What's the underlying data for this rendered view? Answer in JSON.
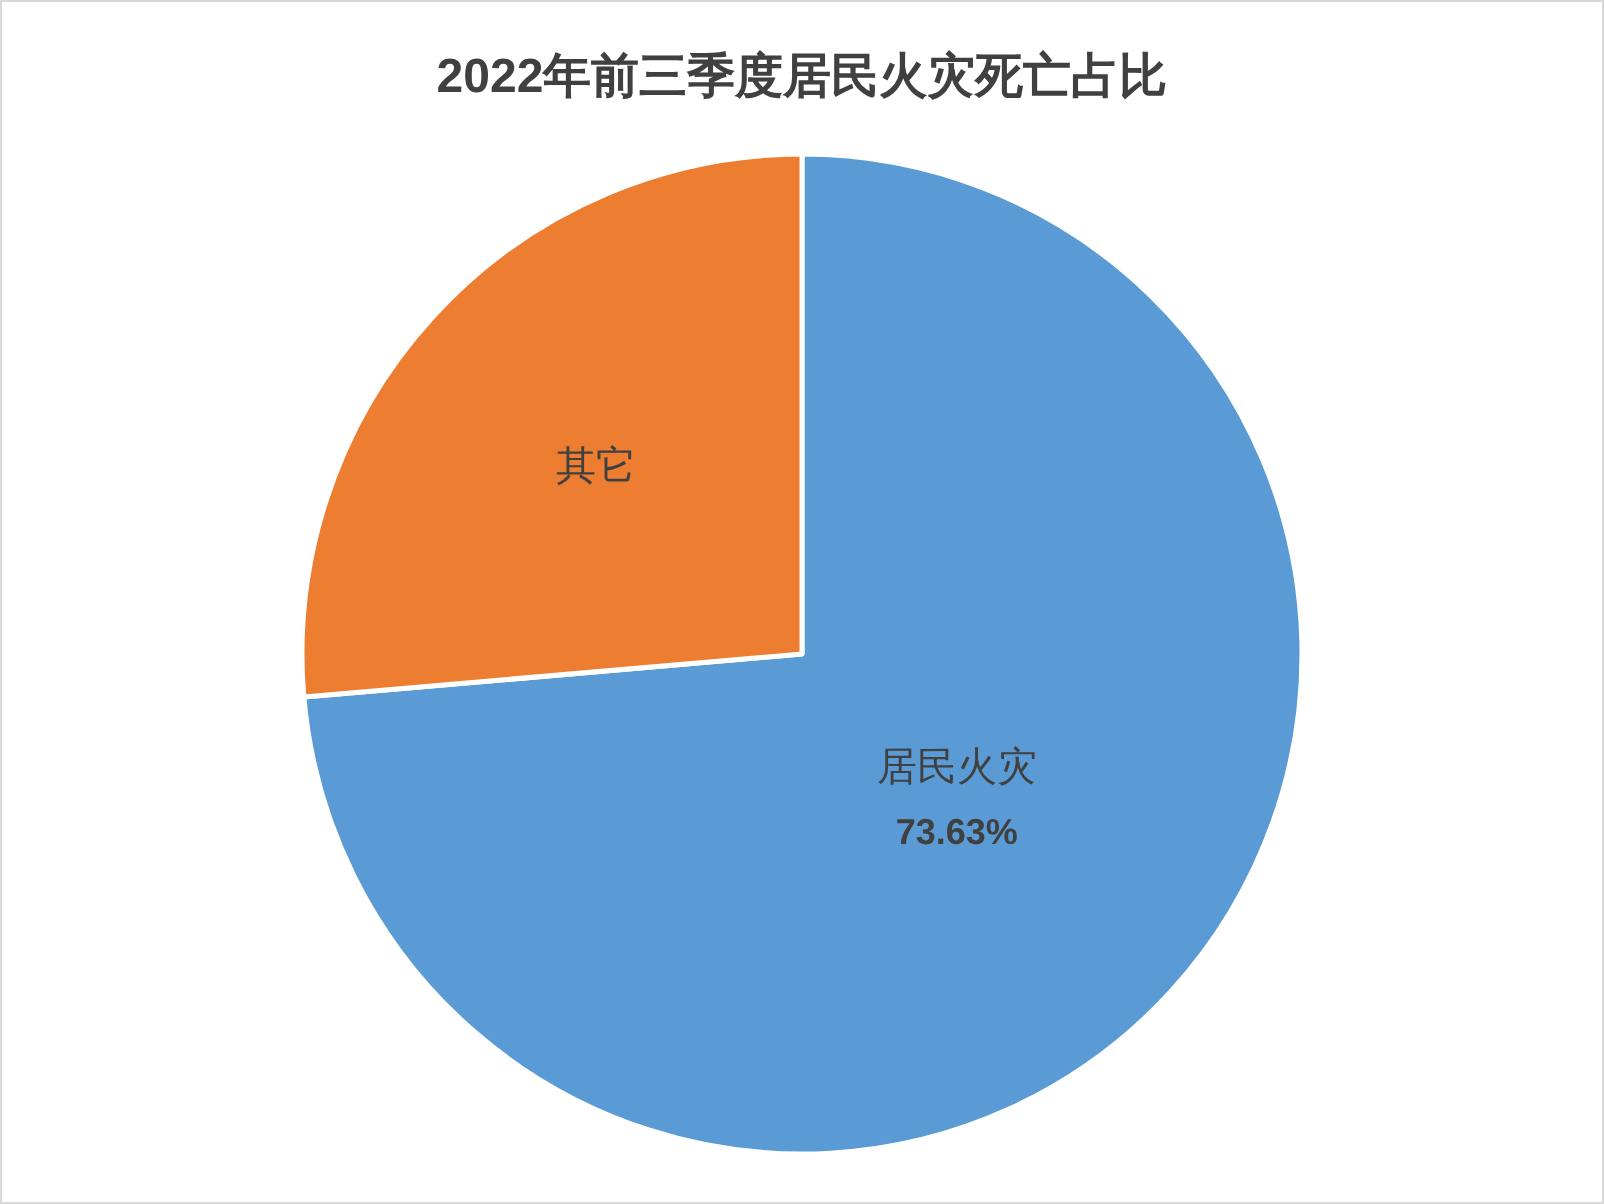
{
  "chart_data": {
    "type": "pie",
    "title": "2022年前三季度居民火灾死亡占比",
    "categories": [
      "居民火灾",
      "其它"
    ],
    "values": [
      73.63,
      26.37
    ],
    "colors": [
      "#5b9bd5",
      "#ed7d31"
    ],
    "value_labels": [
      "73.63%",
      null
    ]
  }
}
